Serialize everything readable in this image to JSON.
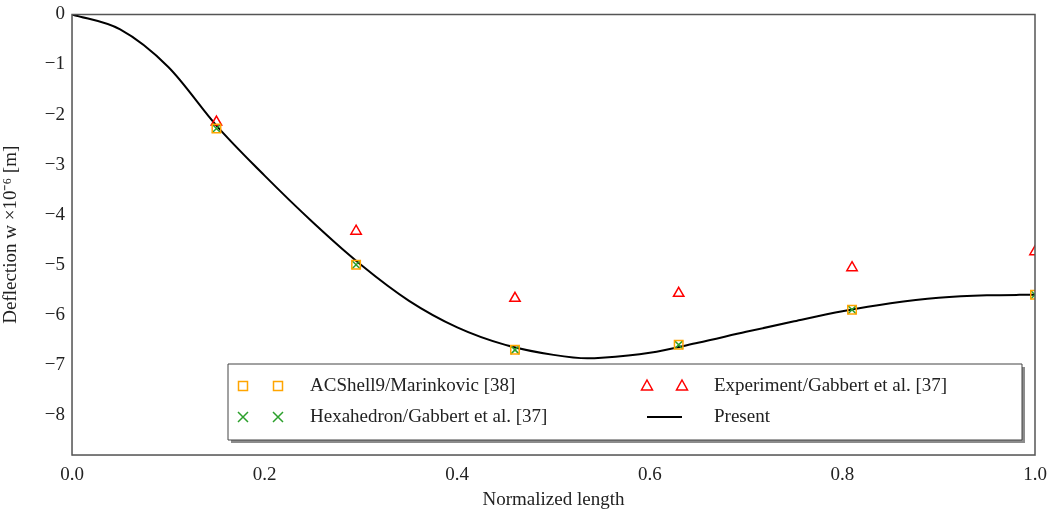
{
  "chart_data": {
    "type": "scatter",
    "xlabel": "Normalized length",
    "ylabel": "Deflection w ×10⁻⁶ [m]",
    "xlim": [
      0,
      1
    ],
    "ylim": [
      -8.8,
      0
    ],
    "xticks": [
      {
        "value": 0,
        "label": "0.0"
      },
      {
        "value": 0.2,
        "label": "0.2"
      },
      {
        "value": 0.4,
        "label": "0.4"
      },
      {
        "value": 0.6,
        "label": "0.6"
      },
      {
        "value": 0.8,
        "label": "0.8"
      },
      {
        "value": 1,
        "label": "1.0"
      }
    ],
    "yticks": [
      0,
      -1,
      -2,
      -3,
      -4,
      -5,
      -6,
      -7,
      -8
    ],
    "grid": false,
    "legend": "bottom right",
    "series": [
      {
        "name": "ACShell9/Marinkovic [38]",
        "type": "scatter",
        "marker": "square",
        "color": "#ffa500",
        "x": [
          0.15,
          0.295,
          0.46,
          0.63,
          0.81,
          1.0
        ],
        "values": [
          -2.28,
          -5.0,
          -6.7,
          -6.6,
          -5.9,
          -5.6
        ]
      },
      {
        "name": "Hexahedron/Gabbert et al. [37]",
        "type": "scatter",
        "marker": "cross",
        "color": "#2ca02c",
        "x": [
          0.15,
          0.295,
          0.46,
          0.63,
          0.81,
          1.0
        ],
        "values": [
          -2.28,
          -5.0,
          -6.7,
          -6.6,
          -5.9,
          -5.6
        ]
      },
      {
        "name": "Experiment/Gabbert et al. [37]",
        "type": "scatter",
        "marker": "triangle",
        "color": "#ff0000",
        "x": [
          0.15,
          0.295,
          0.46,
          0.63,
          0.81,
          1.0
        ],
        "values": [
          -2.15,
          -4.33,
          -5.67,
          -5.57,
          -5.06,
          -4.74
        ]
      },
      {
        "name": "Present",
        "type": "line",
        "marker": "none",
        "line_style": "solid",
        "color": "#000000",
        "x": [
          0,
          0.05,
          0.1,
          0.15,
          0.2,
          0.25,
          0.3,
          0.35,
          0.4,
          0.45,
          0.5,
          0.535,
          0.55,
          0.6,
          0.65,
          0.7,
          0.75,
          0.8,
          0.85,
          0.9,
          0.95,
          1.0
        ],
        "values": [
          0,
          -0.3,
          -1.05,
          -2.22,
          -3.22,
          -4.15,
          -5.0,
          -5.72,
          -6.25,
          -6.6,
          -6.8,
          -6.87,
          -6.86,
          -6.76,
          -6.56,
          -6.34,
          -6.13,
          -5.93,
          -5.77,
          -5.66,
          -5.61,
          -5.6
        ]
      }
    ]
  }
}
